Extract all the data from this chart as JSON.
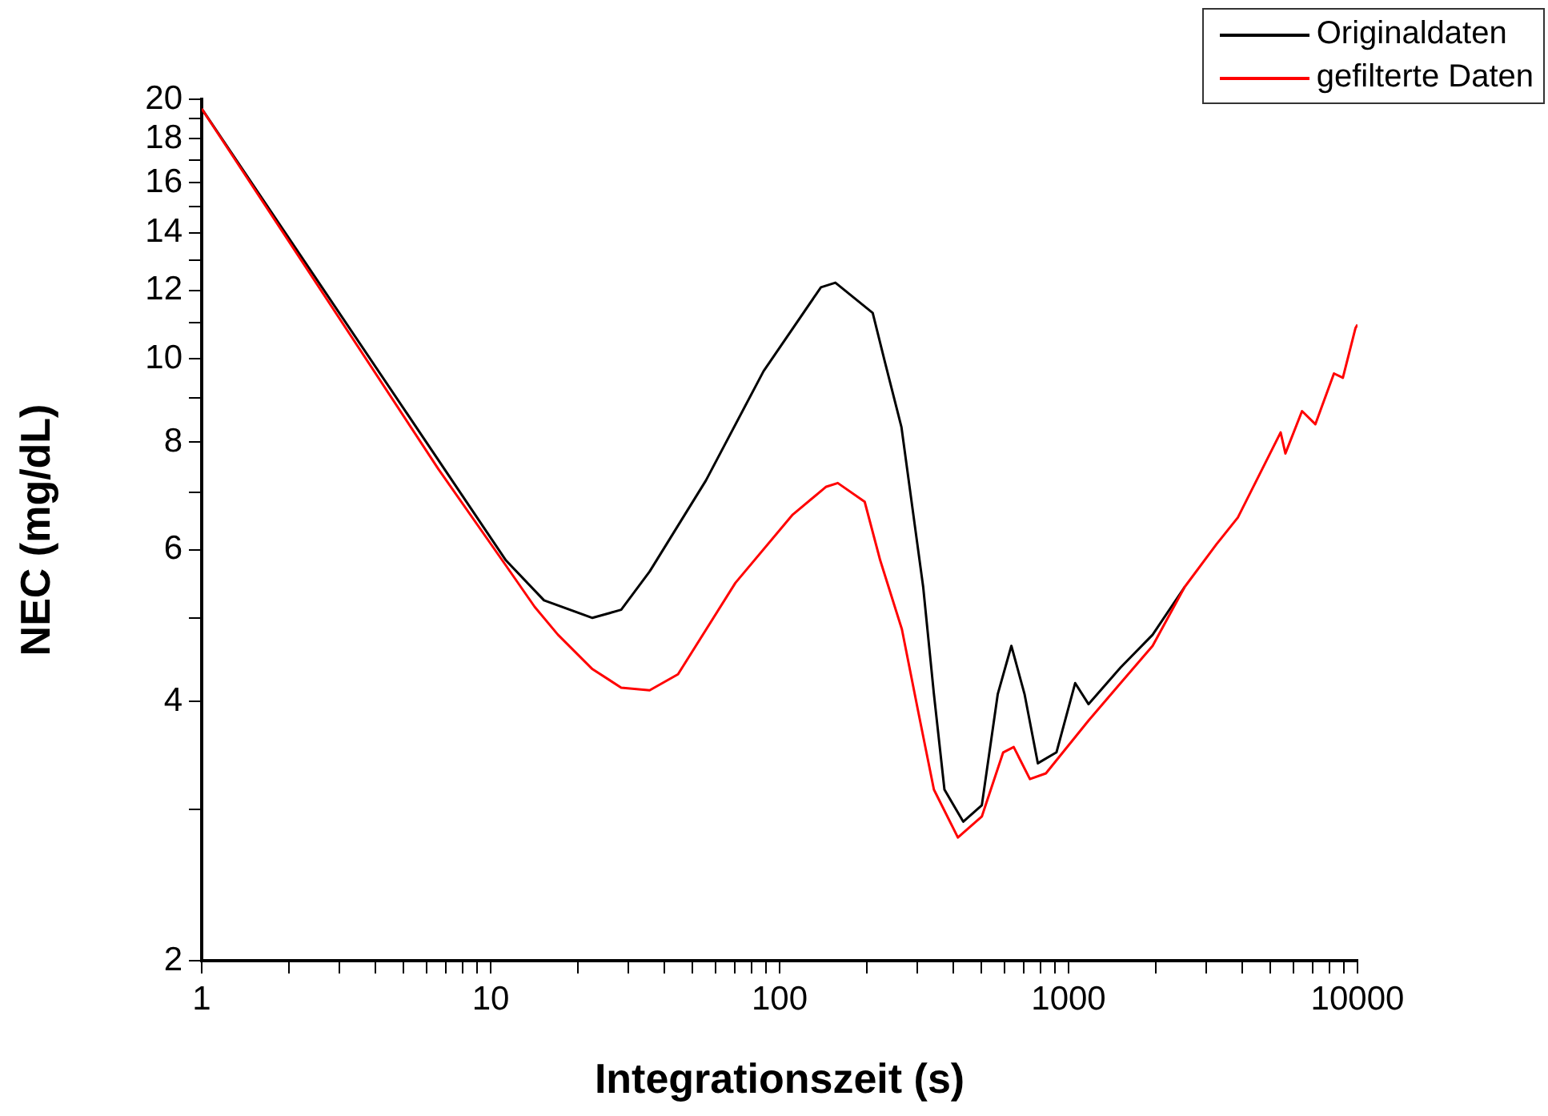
{
  "chart_data": {
    "type": "line",
    "xlabel": "Integrationszeit (s)",
    "ylabel": "NEC (mg/dL)",
    "log": "xy",
    "xlim": [
      1,
      10000
    ],
    "ylim": [
      2,
      20
    ],
    "xticks": [
      1,
      {
        "value": 2,
        "label": null
      },
      {
        "value": 3,
        "label": null
      },
      {
        "value": 4,
        "label": null
      },
      {
        "value": 5,
        "label": null
      },
      {
        "value": 6,
        "label": null
      },
      {
        "value": 7,
        "label": null
      },
      {
        "value": 8,
        "label": null
      },
      {
        "value": 9,
        "label": null
      },
      10,
      {
        "value": 20,
        "label": null
      },
      {
        "value": 30,
        "label": null
      },
      {
        "value": 40,
        "label": null
      },
      {
        "value": 50,
        "label": null
      },
      {
        "value": 60,
        "label": null
      },
      {
        "value": 70,
        "label": null
      },
      {
        "value": 80,
        "label": null
      },
      {
        "value": 90,
        "label": null
      },
      100,
      {
        "value": 200,
        "label": null
      },
      {
        "value": 300,
        "label": null
      },
      {
        "value": 400,
        "label": null
      },
      {
        "value": 500,
        "label": null
      },
      {
        "value": 600,
        "label": null
      },
      {
        "value": 700,
        "label": null
      },
      {
        "value": 800,
        "label": null
      },
      {
        "value": 900,
        "label": null
      },
      1000,
      {
        "value": 2000,
        "label": null
      },
      {
        "value": 3000,
        "label": null
      },
      {
        "value": 4000,
        "label": null
      },
      {
        "value": 5000,
        "label": null
      },
      {
        "value": 6000,
        "label": null
      },
      {
        "value": 7000,
        "label": null
      },
      {
        "value": 8000,
        "label": null
      },
      {
        "value": 9000,
        "label": null
      },
      10000
    ],
    "yticks": [
      2,
      {
        "value": 3,
        "label": null
      },
      4,
      {
        "value": 5,
        "label": null
      },
      6,
      {
        "value": 7,
        "label": null
      },
      8,
      {
        "value": 9,
        "label": null
      },
      10,
      {
        "value": 11,
        "label": null
      },
      12,
      {
        "value": 13,
        "label": null
      },
      14,
      {
        "value": 15,
        "label": null
      },
      16,
      {
        "value": 17,
        "label": null
      },
      18,
      {
        "value": 19,
        "label": null
      },
      20
    ],
    "grid": false,
    "legend": "top right",
    "marker": "none",
    "line_style": "solid",
    "series": [
      {
        "name": "Originaldaten",
        "color": "#000000",
        "x": [
          1,
          11.3,
          15.3,
          22.5,
          28.3,
          35.5,
          55.6,
          88,
          139,
          156,
          210,
          232,
          264,
          288,
          314,
          342,
          372,
          432,
          501,
          569,
          634,
          704,
          783,
          908,
          1054,
          1173,
          1514,
          1954,
          2522
        ],
        "values": [
          19.5,
          5.83,
          5.24,
          5.0,
          5.11,
          5.66,
          7.22,
          9.67,
          12.1,
          12.25,
          11.3,
          9.88,
          8.33,
          6.72,
          5.43,
          4.08,
          3.16,
          2.9,
          3.03,
          4.08,
          4.64,
          4.08,
          3.39,
          3.49,
          4.2,
          3.97,
          4.38,
          4.78,
          5.43
        ]
      },
      {
        "name": "gefilterte Daten",
        "color": "#ff0000",
        "x": [
          1,
          6.6,
          11.3,
          14.2,
          17.1,
          22.5,
          28.3,
          35.5,
          44.5,
          70.3,
          111,
          145,
          159,
          197,
          223,
          265,
          301,
          342,
          414,
          501,
          594,
          646,
          735,
          835,
          1173,
          1514,
          1954,
          2522,
          3253,
          3855,
          5420,
          5630,
          6427,
          7147,
          8290,
          8900,
          9840,
          10000
        ],
        "values": [
          19.5,
          7.44,
          5.75,
          5.15,
          4.78,
          4.36,
          4.15,
          4.12,
          4.3,
          5.49,
          6.59,
          7.1,
          7.17,
          6.82,
          5.83,
          4.85,
          3.91,
          3.16,
          2.78,
          2.94,
          3.49,
          3.54,
          3.25,
          3.3,
          3.8,
          4.2,
          4.64,
          5.43,
          6.09,
          6.54,
          8.21,
          7.76,
          8.69,
          8.39,
          9.61,
          9.5,
          10.85,
          10.95
        ]
      }
    ]
  }
}
